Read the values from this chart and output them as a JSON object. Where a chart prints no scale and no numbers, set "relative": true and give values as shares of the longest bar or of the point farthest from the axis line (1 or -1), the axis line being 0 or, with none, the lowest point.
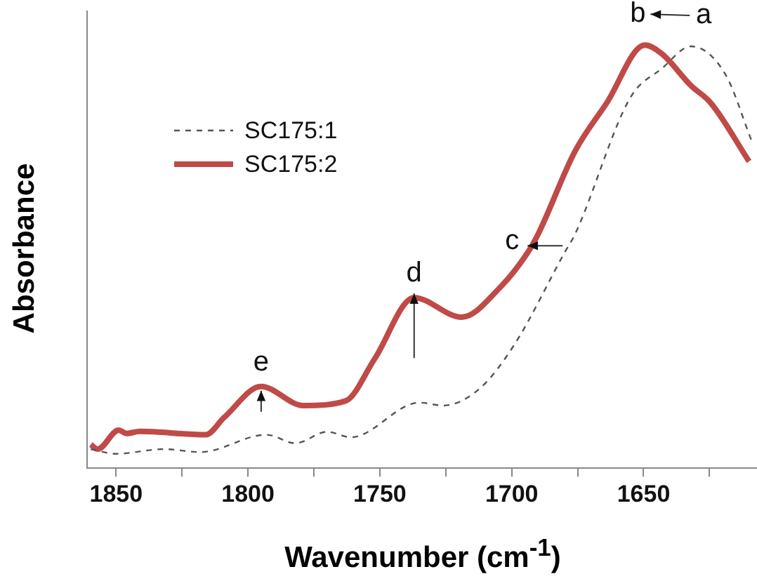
{
  "chart_data": {
    "type": "line",
    "relative": true,
    "xlabel": "Wavenumber  (cm$^{-1}$)",
    "ylabel": "Absorbance",
    "legend": "top left",
    "grid": false,
    "marker": "none",
    "xlim": [
      1861,
      1607
    ],
    "xticks": [
      1850,
      {
        "value": 1825,
        "label": null
      },
      1800,
      {
        "value": 1775,
        "label": null
      },
      1750,
      {
        "value": 1725,
        "label": null
      },
      1700,
      {
        "value": 1675,
        "label": null
      },
      1650,
      {
        "value": 1625,
        "label": null
      }
    ],
    "series": [
      {
        "name": "SC175:1",
        "color": "#555555",
        "line_style": "dashed",
        "x": [
          1859.6,
          1850,
          1832,
          1818,
          1793,
          1782,
          1770,
          1761,
          1735,
          1726,
          1712,
          1699,
          1680,
          1676,
          1655,
          1643,
          1632,
          1619,
          1609
        ],
        "values": [
          0.045,
          0.034,
          0.045,
          0.038,
          0.079,
          0.059,
          0.086,
          0.073,
          0.155,
          0.148,
          0.189,
          0.292,
          0.509,
          0.553,
          0.876,
          0.945,
          0.997,
          0.931,
          0.773
        ]
      },
      {
        "name": "SC175:2",
        "color": "#bf4a47",
        "line_style": "solid",
        "x": [
          1859.6,
          1857,
          1849,
          1846,
          1841,
          1816,
          1809,
          1795,
          1779,
          1763,
          1752,
          1737,
          1719,
          1704,
          1694,
          1690,
          1676,
          1664,
          1649.5,
          1643,
          1632,
          1624.5,
          1610
        ],
        "values": [
          0.056,
          0.045,
          0.09,
          0.082,
          0.087,
          0.079,
          0.12,
          0.193,
          0.148,
          0.159,
          0.258,
          0.403,
          0.357,
          0.43,
          0.509,
          0.553,
          0.749,
          0.863,
          1.0,
          0.979,
          0.904,
          0.863,
          0.725
        ]
      }
    ],
    "annotations": [
      {
        "text": "a",
        "x": 1632,
        "y": 0.997
      },
      {
        "text": "b",
        "x": 1649.5,
        "y": 1.0
      },
      {
        "text": "c",
        "x": 1694,
        "y": 0.509
      },
      {
        "text": "d",
        "x": 1737,
        "y": 0.403
      },
      {
        "text": "e",
        "x": 1795,
        "y": 0.193
      }
    ]
  }
}
